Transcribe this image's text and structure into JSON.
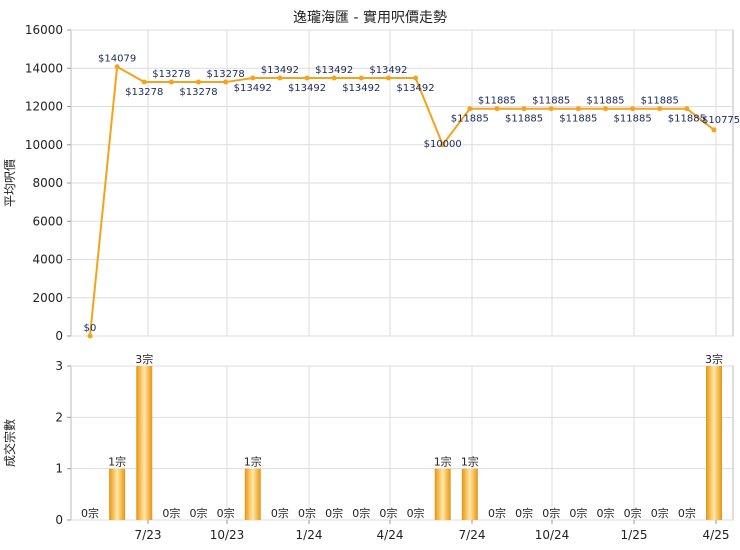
{
  "chart_data": [
    {
      "type": "line",
      "title": "逸瓏海匯 - 實用呎價走勢",
      "ylabel": "平均呎價",
      "ylim": [
        0,
        16000
      ],
      "yticks": [
        0,
        2000,
        4000,
        6000,
        8000,
        10000,
        12000,
        14000,
        16000
      ],
      "x_tick_labels": [
        "7/23",
        "10/23",
        "1/24",
        "4/24",
        "7/24",
        "10/24",
        "1/25",
        "4/25"
      ],
      "grid": true,
      "color": "#f5a31a",
      "points": [
        {
          "value": 0,
          "label": "$0"
        },
        {
          "value": 14079,
          "label": "$14079"
        },
        {
          "value": 13278,
          "label": "$13278"
        },
        {
          "value": 13278,
          "label": "$13278"
        },
        {
          "value": 13278,
          "label": "$13278"
        },
        {
          "value": 13278,
          "label": "$13278"
        },
        {
          "value": 13492,
          "label": "$13492"
        },
        {
          "value": 13492,
          "label": "$13492"
        },
        {
          "value": 13492,
          "label": "$13492"
        },
        {
          "value": 13492,
          "label": "$13492"
        },
        {
          "value": 13492,
          "label": "$13492"
        },
        {
          "value": 13492,
          "label": "$13492"
        },
        {
          "value": 13492,
          "label": "$13492"
        },
        {
          "value": 10000,
          "label": "$10000"
        },
        {
          "value": 11885,
          "label": "$11885"
        },
        {
          "value": 11885,
          "label": "$11885"
        },
        {
          "value": 11885,
          "label": "$11885"
        },
        {
          "value": 11885,
          "label": "$11885"
        },
        {
          "value": 11885,
          "label": "$11885"
        },
        {
          "value": 11885,
          "label": "$11885"
        },
        {
          "value": 11885,
          "label": "$11885"
        },
        {
          "value": 11885,
          "label": "$11885"
        },
        {
          "value": 11885,
          "label": "$11885"
        },
        {
          "value": 10775,
          "label": "$10775"
        }
      ]
    },
    {
      "type": "bar",
      "ylabel": "成交宗數",
      "ylim": [
        0,
        3
      ],
      "yticks": [
        0,
        1,
        2,
        3
      ],
      "x_tick_labels": [
        "7/23",
        "10/23",
        "1/24",
        "4/24",
        "7/24",
        "10/24",
        "1/25",
        "4/25"
      ],
      "grid": true,
      "color": "#f5a31a",
      "bars": [
        {
          "value": 0,
          "label": "0宗"
        },
        {
          "value": 1,
          "label": "1宗"
        },
        {
          "value": 3,
          "label": "3宗"
        },
        {
          "value": 0,
          "label": "0宗"
        },
        {
          "value": 0,
          "label": "0宗"
        },
        {
          "value": 0,
          "label": "0宗"
        },
        {
          "value": 1,
          "label": "1宗"
        },
        {
          "value": 0,
          "label": "0宗"
        },
        {
          "value": 0,
          "label": "0宗"
        },
        {
          "value": 0,
          "label": "0宗"
        },
        {
          "value": 0,
          "label": "0宗"
        },
        {
          "value": 0,
          "label": "0宗"
        },
        {
          "value": 0,
          "label": "0宗"
        },
        {
          "value": 1,
          "label": "1宗"
        },
        {
          "value": 1,
          "label": "1宗"
        },
        {
          "value": 0,
          "label": "0宗"
        },
        {
          "value": 0,
          "label": "0宗"
        },
        {
          "value": 0,
          "label": "0宗"
        },
        {
          "value": 0,
          "label": "0宗"
        },
        {
          "value": 0,
          "label": "0宗"
        },
        {
          "value": 0,
          "label": "0宗"
        },
        {
          "value": 0,
          "label": "0宗"
        },
        {
          "value": 0,
          "label": "0宗"
        },
        {
          "value": 3,
          "label": "3宗"
        }
      ]
    }
  ]
}
